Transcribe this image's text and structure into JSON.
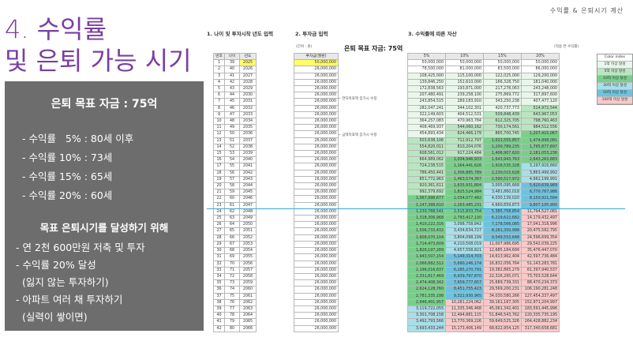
{
  "slide": {
    "title_line1": "4. 수익률",
    "title_line2": "및 은퇴 가능 시기",
    "top_right": "수익률 & 은퇴시기 계산"
  },
  "panel": {
    "title": "은퇴 목표 자금 : 75억",
    "rates": [
      "- 수익률   5% : 80세 이후",
      "- 수익률 10% : 73세",
      "- 수익률 15% : 65세",
      "- 수익률 20% : 60세"
    ],
    "subtitle": "목표 은퇴시기를 달성하기 위해",
    "tips": [
      "- 연 2천 600만원 저축 및 투자",
      "- 수익률 20% 달성",
      "  (잃지 않는 투자하기)",
      "- 아파트 여러 채 투자하기",
      "  (실력이 쌓이면)"
    ]
  },
  "sheet": {
    "section1": "1. 나이 및 투자시작 년도 입력",
    "section2": "2. 투자금 입력",
    "section3": "3. 수익률에 따른 자산",
    "target_label": "은퇴 목표 자금: 75억",
    "unit1": "(단위 : 원)",
    "unit2": "(적용 연 수익률)",
    "col_headers": [
      "번호",
      "나이",
      "년도"
    ],
    "invest_header": "투자금(월환)",
    "rate_headers": [
      "5%",
      "10%",
      "15%",
      "20%"
    ],
    "note1": "← 연차목표액 증가시 수정",
    "note2": "← 금액목표액 증가시 수정",
    "rows": [
      {
        "n": "1",
        "a": "39",
        "y": "2025",
        "inv": "50,000,000",
        "r": [
          "50,000,000",
          "50,000,000",
          "50,000,000",
          "50,000,000"
        ]
      },
      {
        "n": "2",
        "a": "40",
        "y": "2026",
        "inv": "26,000,000",
        "r": [
          "78,500,000",
          "81,000,000",
          "83,500,000",
          "86,000,000"
        ]
      },
      {
        "n": "3",
        "a": "41",
        "y": "2027",
        "inv": "26,000,000",
        "r": [
          "108,425,000",
          "115,100,000",
          "122,025,000",
          "129,200,000"
        ]
      },
      {
        "n": "4",
        "a": "42",
        "y": "2028",
        "inv": "26,000,000",
        "r": [
          "139,846,250",
          "152,610,000",
          "166,328,750",
          "181,040,000"
        ]
      },
      {
        "n": "5",
        "a": "43",
        "y": "2029",
        "inv": "26,000,000",
        "r": [
          "172,838,563",
          "193,871,000",
          "217,278,063",
          "243,248,000"
        ]
      },
      {
        "n": "6",
        "a": "44",
        "y": "2030",
        "inv": "26,000,000",
        "r": [
          "207,480,491",
          "239,258,100",
          "275,869,772",
          "317,897,600"
        ]
      },
      {
        "n": "7",
        "a": "45",
        "y": "2031",
        "inv": "26,000,000",
        "r": [
          "243,854,515",
          "289,183,910",
          "343,250,238",
          "407,477,120"
        ]
      },
      {
        "n": "8",
        "a": "46",
        "y": "2032",
        "inv": "26,000,000",
        "r": [
          "282,047,241",
          "344,102,301",
          "420,737,773",
          "514,972,544"
        ]
      },
      {
        "n": "9",
        "a": "47",
        "y": "2033",
        "inv": "26,000,000",
        "r": [
          "322,149,603",
          "404,512,531",
          "509,848,439",
          "643,967,053"
        ]
      },
      {
        "n": "10",
        "a": "48",
        "y": "2034",
        "inv": "26,000,000",
        "r": [
          "364,257,083",
          "470,963,784",
          "612,325,705",
          "798,760,463"
        ]
      },
      {
        "n": "11",
        "a": "49",
        "y": "2035",
        "inv": "26,000,000",
        "r": [
          "408,469,937",
          "544,060,162",
          "730,174,561",
          "984,512,556"
        ]
      },
      {
        "n": "12",
        "a": "50",
        "y": "2036",
        "inv": "26,000,000",
        "r": [
          "454,893,434",
          "624,466,179",
          "865,700,745",
          "1,207,415,067"
        ]
      },
      {
        "n": "13",
        "a": "51",
        "y": "2037",
        "inv": "26,000,000",
        "r": [
          "503,638,106",
          "712,912,797",
          "1,021,555,857",
          "1,474,898,081"
        ]
      },
      {
        "n": "14",
        "a": "52",
        "y": "2038",
        "inv": "26,000,000",
        "r": [
          "554,820,011",
          "810,204,076",
          "1,200,789,235",
          "1,795,877,697"
        ]
      },
      {
        "n": "15",
        "a": "53",
        "y": "2039",
        "inv": "26,000,000",
        "r": [
          "608,561,012",
          "917,224,484",
          "1,406,907,620",
          "2,181,053,236"
        ]
      },
      {
        "n": "16",
        "a": "54",
        "y": "2040",
        "inv": "26,000,000",
        "r": [
          "664,989,062",
          "1,034,946,933",
          "1,643,943,763",
          "2,643,263,883"
        ]
      },
      {
        "n": "17",
        "a": "55",
        "y": "2041",
        "inv": "26,000,000",
        "r": [
          "724,238,515",
          "1,164,441,626",
          "1,916,535,328",
          "3,197,916,660"
        ]
      },
      {
        "n": "18",
        "a": "56",
        "y": "2042",
        "inv": "26,000,000",
        "r": [
          "786,450,441",
          "1,306,885,789",
          "2,230,015,628",
          "3,863,499,992"
        ]
      },
      {
        "n": "19",
        "a": "57",
        "y": "2043",
        "inv": "26,000,000",
        "r": [
          "851,772,963",
          "1,463,574,367",
          "2,590,517,972",
          "4,662,199,991"
        ]
      },
      {
        "n": "20",
        "a": "58",
        "y": "2044",
        "inv": "26,000,000",
        "r": [
          "920,361,611",
          "1,635,931,804",
          "3,005,095,668",
          "5,620,639,989"
        ]
      },
      {
        "n": "21",
        "a": "59",
        "y": "2045",
        "inv": "26,000,000",
        "r": [
          "992,379,692",
          "1,825,524,984",
          "3,481,860,018",
          "6,770,767,986"
        ]
      },
      {
        "n": "22",
        "a": "60",
        "y": "2046",
        "inv": "26,000,000",
        "r": [
          "1,067,998,677",
          "2,034,077,482",
          "4,030,139,020",
          "8,150,921,584"
        ]
      },
      {
        "n": "23",
        "a": "61",
        "y": "2047",
        "inv": "26,000,000",
        "r": [
          "1,147,398,610",
          "2,263,485,231",
          "4,660,659,873",
          "9,807,105,900"
        ]
      },
      {
        "n": "24",
        "a": "62",
        "y": "2048",
        "inv": "26,000,000",
        "r": [
          "1,230,768,541",
          "2,515,833,754",
          "5,385,758,854",
          "11,794,527,081"
        ]
      },
      {
        "n": "25",
        "a": "63",
        "y": "2049",
        "inv": "26,000,000",
        "r": [
          "1,318,306,968",
          "2,793,417,130",
          "6,219,622,682",
          "14,179,432,497"
        ]
      },
      {
        "n": "26",
        "a": "64",
        "y": "2050",
        "inv": "26,000,000",
        "r": [
          "1,410,222,316",
          "3,098,758,842",
          "7,178,566,085",
          "17,041,318,996"
        ]
      },
      {
        "n": "27",
        "a": "65",
        "y": "2051",
        "inv": "26,000,000",
        "r": [
          "1,506,733,432",
          "3,434,634,727",
          "8,281,350,998",
          "20,475,582,795"
        ]
      },
      {
        "n": "28",
        "a": "66",
        "y": "2052",
        "inv": "26,000,000",
        "r": [
          "1,608,070,104",
          "3,804,098,199",
          "9,549,553,648",
          "24,596,699,354"
        ]
      },
      {
        "n": "29",
        "a": "67",
        "y": "2053",
        "inv": "26,000,000",
        "r": [
          "1,714,473,609",
          "4,210,508,019",
          "11,007,986,695",
          "29,542,039,225"
        ]
      },
      {
        "n": "30",
        "a": "68",
        "y": "2054",
        "inv": "26,000,000",
        "r": [
          "1,826,197,289",
          "4,657,558,821",
          "12,685,184,699",
          "35,476,447,070"
        ]
      },
      {
        "n": "31",
        "a": "69",
        "y": "2055",
        "inv": "26,000,000",
        "r": [
          "1,943,507,154",
          "5,149,314,703",
          "14,613,962,404",
          "42,597,736,484"
        ]
      },
      {
        "n": "32",
        "a": "70",
        "y": "2056",
        "inv": "26,000,000",
        "r": [
          "2,066,682,512",
          "5,690,246,174",
          "16,832,056,764",
          "51,143,283,781"
        ]
      },
      {
        "n": "33",
        "a": "71",
        "y": "2057",
        "inv": "26,000,000",
        "r": [
          "2,196,016,637",
          "6,285,270,791",
          "19,382,865,279",
          "61,397,940,537"
        ]
      },
      {
        "n": "34",
        "a": "72",
        "y": "2058",
        "inv": "26,000,000",
        "r": [
          "2,331,817,469",
          "6,939,797,870",
          "22,316,295,071",
          "73,703,528,644"
        ]
      },
      {
        "n": "35",
        "a": "73",
        "y": "2059",
        "inv": "26,000,000",
        "r": [
          "2,474,408,342",
          "7,659,777,657",
          "25,689,739,331",
          "88,470,234,373"
        ]
      },
      {
        "n": "36",
        "a": "74",
        "y": "2060",
        "inv": "26,000,000",
        "r": [
          "2,624,128,760",
          "8,451,755,423",
          "29,569,200,231",
          "106,190,281,248"
        ]
      },
      {
        "n": "37",
        "a": "75",
        "y": "2061",
        "inv": "26,000,000",
        "r": [
          "2,781,335,198",
          "9,322,930,965",
          "34,030,580,266",
          "127,454,337,497"
        ]
      },
      {
        "n": "38",
        "a": "76",
        "y": "2062",
        "inv": "26,000,000",
        "r": [
          "2,946,401,957",
          "10,281,224,062",
          "39,161,167,305",
          "152,971,204,997"
        ]
      },
      {
        "n": "39",
        "a": "77",
        "y": "2063",
        "inv": "26,000,000",
        "r": [
          "3,119,722,055",
          "11,335,346,468",
          "45,061,342,401",
          "183,591,445,996"
        ]
      },
      {
        "n": "40",
        "a": "78",
        "y": "2064",
        "inv": "26,000,000",
        "r": [
          "3,301,708,158",
          "12,494,881,115",
          "51,846,543,762",
          "220,335,735,195"
        ]
      },
      {
        "n": "41",
        "a": "79",
        "y": "2065",
        "inv": "26,000,000",
        "r": [
          "3,492,793,566",
          "13,770,369,226",
          "59,649,525,326",
          "264,428,882,234"
        ]
      },
      {
        "n": "42",
        "a": "80",
        "y": "2066",
        "inv": "26,000,000",
        "r": [
          "3,693,433,244",
          "15,173,406,149",
          "68,622,954,125",
          "317,340,658,681"
        ]
      }
    ],
    "legend_title": "Color index",
    "legend": [
      "1억 이상 달성",
      "5억 이상 달성",
      "10억 이상 달성",
      "30억 이상 달성",
      "50억 이상 달성",
      "100억 이상 달성"
    ],
    "legend_colors": [
      "#e9f7ea",
      "#b9e6c0",
      "#78cf8a",
      "#a9dfe9",
      "#6fc2de",
      "#f8c9c9"
    ]
  }
}
